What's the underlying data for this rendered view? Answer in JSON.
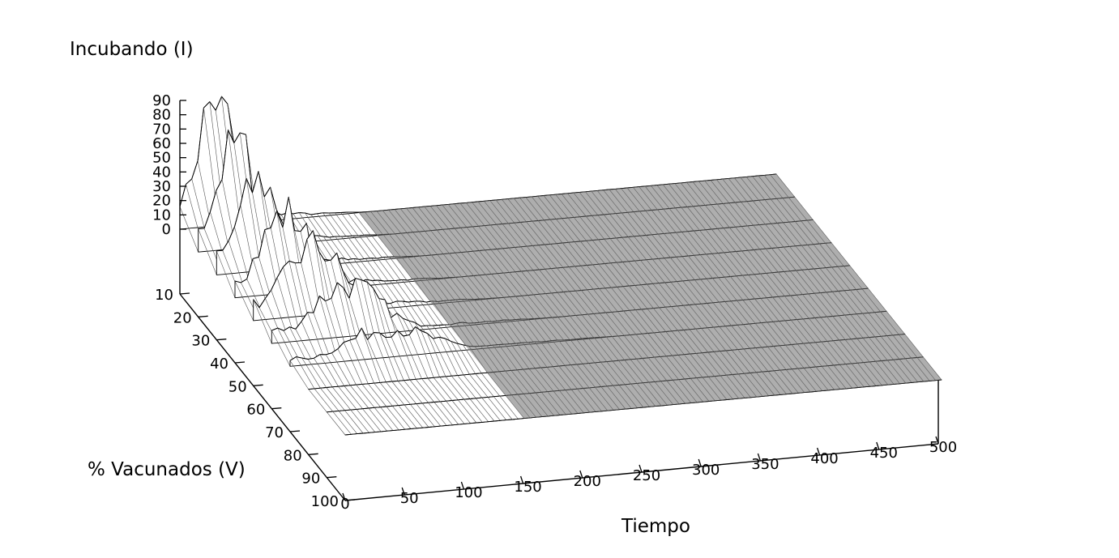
{
  "chart_data": {
    "type": "surface3d",
    "title": "",
    "zlabel": "Incubando (I)",
    "xlabel": "Tiempo",
    "ylabel": "% Vacunados (V)",
    "x_ticks": [
      0,
      50,
      100,
      150,
      200,
      250,
      300,
      350,
      400,
      450,
      500
    ],
    "y_ticks": [
      10,
      20,
      30,
      40,
      50,
      60,
      70,
      80,
      90,
      100
    ],
    "z_ticks": [
      0,
      10,
      20,
      30,
      40,
      50,
      60,
      70,
      80,
      90
    ],
    "xlim": [
      0,
      500
    ],
    "ylim": [
      10,
      100
    ],
    "zlim": [
      0,
      90
    ],
    "render": "hidden-line wireframe, light gray top face, dark gray underside",
    "x_step": 5,
    "series": [
      {
        "v": 10,
        "peak_t": 30,
        "peak_i": 90,
        "spread": 22,
        "duration": 160
      },
      {
        "v": 20,
        "peak_t": 32,
        "peak_i": 72,
        "spread": 24,
        "duration": 165
      },
      {
        "v": 30,
        "peak_t": 36,
        "peak_i": 62,
        "spread": 26,
        "duration": 175
      },
      {
        "v": 40,
        "peak_t": 42,
        "peak_i": 55,
        "spread": 30,
        "duration": 190
      },
      {
        "v": 50,
        "peak_t": 50,
        "peak_i": 48,
        "spread": 34,
        "duration": 210
      },
      {
        "v": 60,
        "peak_t": 62,
        "peak_i": 36,
        "spread": 40,
        "duration": 240
      },
      {
        "v": 70,
        "peak_t": 80,
        "peak_i": 20,
        "spread": 50,
        "duration": 280
      },
      {
        "v": 80,
        "peak_t": 0,
        "peak_i": 0,
        "spread": 1,
        "duration": 0
      },
      {
        "v": 90,
        "peak_t": 0,
        "peak_i": 0,
        "spread": 1,
        "duration": 0
      },
      {
        "v": 100,
        "peak_t": 0,
        "peak_i": 0,
        "spread": 1,
        "duration": 0
      }
    ]
  }
}
